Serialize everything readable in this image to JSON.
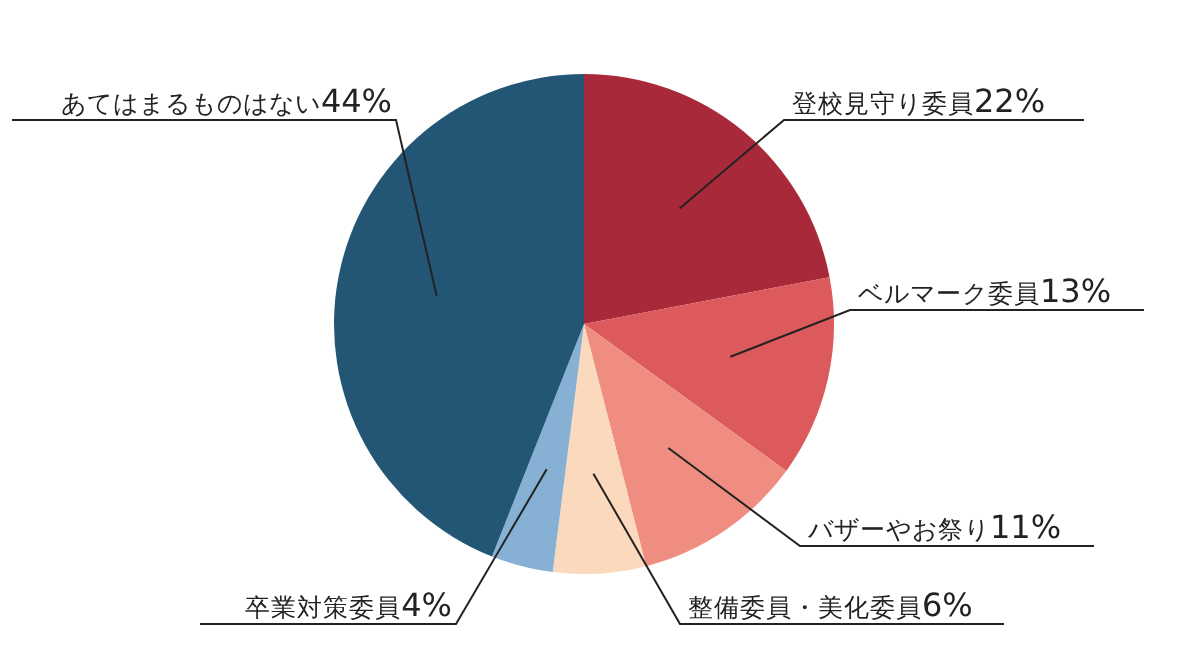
{
  "chart_data": {
    "type": "pie",
    "categories": [
      "登校見守り委員",
      "ベルマーク委員",
      "バザーやお祭り",
      "整備委員・美化委員",
      "卒業対策委員",
      "あてはまるものはない"
    ],
    "values": [
      22,
      13,
      11,
      6,
      4,
      44
    ],
    "value_labels": [
      "22%",
      "13%",
      "11%",
      "6%",
      "4%",
      "44%"
    ],
    "colors": [
      "#a82a3a",
      "#dc5a5c",
      "#ef8e80",
      "#fbd9bd",
      "#86b0d4",
      "#235574"
    ]
  }
}
